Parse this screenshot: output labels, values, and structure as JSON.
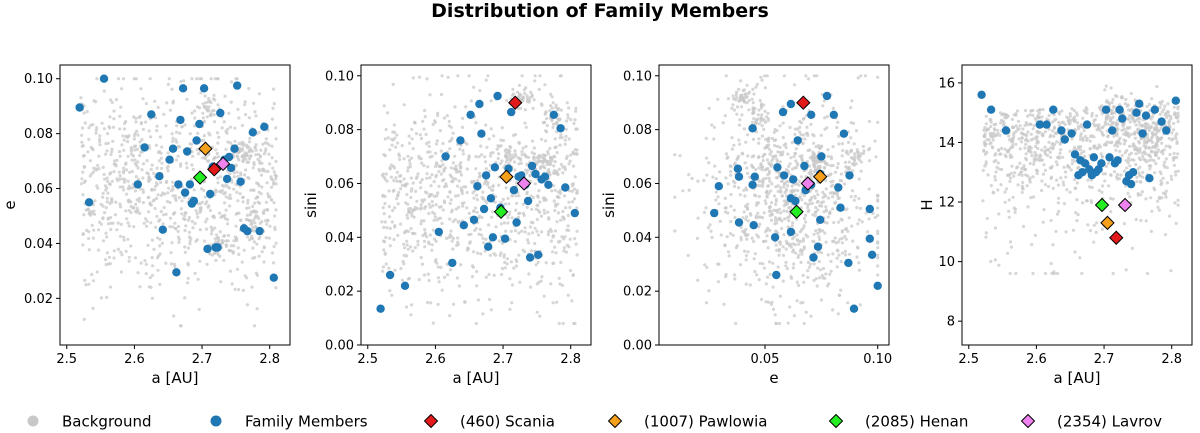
{
  "chart_data": {
    "title": "Distribution of Family Members",
    "type": "scatter",
    "legend": [
      {
        "label": "Background",
        "marker": "circle",
        "color": "#c8c8c8"
      },
      {
        "label": "Family Members",
        "marker": "circle",
        "color": "#1f77b4"
      },
      {
        "label": "(460) Scania",
        "marker": "diamond",
        "color": "#e31a1c"
      },
      {
        "label": "(1007) Pawlowia",
        "marker": "diamond",
        "color": "#f5a01a"
      },
      {
        "label": "(2085) Henan",
        "marker": "diamond",
        "color": "#22ee22"
      },
      {
        "label": "(2354) Lavrov",
        "marker": "diamond",
        "color": "#ee82ee"
      }
    ],
    "family_members": [
      {
        "a": 2.519,
        "e": 0.0895,
        "sini": 0.0135,
        "H": 15.6
      },
      {
        "a": 2.533,
        "e": 0.055,
        "sini": 0.026,
        "H": 15.1
      },
      {
        "a": 2.555,
        "e": 0.1,
        "sini": 0.022,
        "H": 14.4
      },
      {
        "a": 2.605,
        "e": 0.0615,
        "sini": 0.042,
        "H": 14.6
      },
      {
        "a": 2.615,
        "e": 0.075,
        "sini": 0.07,
        "H": 14.6
      },
      {
        "a": 2.625,
        "e": 0.087,
        "sini": 0.0305,
        "H": 15.1
      },
      {
        "a": 2.637,
        "e": 0.0645,
        "sini": 0.076,
        "H": 14.4
      },
      {
        "a": 2.642,
        "e": 0.045,
        "sini": 0.0445,
        "H": 14.1
      },
      {
        "a": 2.652,
        "e": 0.0705,
        "sini": 0.0855,
        "H": 14.3
      },
      {
        "a": 2.657,
        "e": 0.0745,
        "sini": 0.0465,
        "H": 13.6
      },
      {
        "a": 2.662,
        "e": 0.0295,
        "sini": 0.059,
        "H": 12.9
      },
      {
        "a": 2.665,
        "e": 0.0615,
        "sini": 0.0895,
        "H": 13.4
      },
      {
        "a": 2.668,
        "e": 0.085,
        "sini": 0.0785,
        "H": 13.0
      },
      {
        "a": 2.672,
        "e": 0.0965,
        "sini": 0.0505,
        "H": 13.3
      },
      {
        "a": 2.675,
        "e": 0.0585,
        "sini": 0.063,
        "H": 14.6
      },
      {
        "a": 2.678,
        "e": 0.0735,
        "sini": 0.0365,
        "H": 13.1
      },
      {
        "a": 2.682,
        "e": 0.0615,
        "sini": 0.0545,
        "H": 12.9
      },
      {
        "a": 2.685,
        "e": 0.0545,
        "sini": 0.04,
        "H": 13.5
      },
      {
        "a": 2.688,
        "e": 0.0555,
        "sini": 0.066,
        "H": 13.0
      },
      {
        "a": 2.692,
        "e": 0.0775,
        "sini": 0.0925,
        "H": 13.1
      },
      {
        "a": 2.696,
        "e": 0.0835,
        "sini": 0.051,
        "H": 13.3
      },
      {
        "a": 2.703,
        "e": 0.0965,
        "sini": 0.0395,
        "H": 15.1
      },
      {
        "a": 2.708,
        "e": 0.038,
        "sini": 0.0655,
        "H": 13.5
      },
      {
        "a": 2.712,
        "e": 0.058,
        "sini": 0.0865,
        "H": 14.4
      },
      {
        "a": 2.716,
        "e": 0.068,
        "sini": 0.0575,
        "H": 13.3
      },
      {
        "a": 2.72,
        "e": 0.0385,
        "sini": 0.0455,
        "H": 13.4
      },
      {
        "a": 2.723,
        "e": 0.0385,
        "sini": 0.0625,
        "H": 15.1
      },
      {
        "a": 2.727,
        "e": 0.0875,
        "sini": 0.063,
        "H": 14.8
      },
      {
        "a": 2.733,
        "e": 0.0705,
        "sini": 0.0595,
        "H": 12.7
      },
      {
        "a": 2.737,
        "e": 0.0635,
        "sini": 0.0535,
        "H": 12.9
      },
      {
        "a": 2.74,
        "e": 0.0715,
        "sini": 0.0325,
        "H": 12.6
      },
      {
        "a": 2.743,
        "e": 0.0675,
        "sini": 0.0665,
        "H": 13.0
      },
      {
        "a": 2.748,
        "e": 0.0745,
        "sini": 0.0635,
        "H": 15.0
      },
      {
        "a": 2.752,
        "e": 0.0975,
        "sini": 0.0335,
        "H": 15.3
      },
      {
        "a": 2.757,
        "e": 0.0625,
        "sini": 0.0615,
        "H": 14.3
      },
      {
        "a": 2.762,
        "e": 0.0455,
        "sini": 0.0625,
        "H": 14.9
      },
      {
        "a": 2.767,
        "e": 0.0445,
        "sini": 0.0595,
        "H": 12.8
      },
      {
        "a": 2.775,
        "e": 0.0805,
        "sini": 0.0855,
        "H": 15.1
      },
      {
        "a": 2.785,
        "e": 0.0445,
        "sini": 0.0805,
        "H": 14.7
      },
      {
        "a": 2.792,
        "e": 0.0825,
        "sini": 0.0585,
        "H": 14.4
      },
      {
        "a": 2.806,
        "e": 0.0275,
        "sini": 0.049,
        "H": 15.4
      }
    ],
    "representatives": [
      {
        "label": "(460) Scania",
        "a": 2.718,
        "e": 0.067,
        "sini": 0.09,
        "H": 10.8,
        "color": "#e31a1c"
      },
      {
        "label": "(1007) Pawlowia",
        "a": 2.705,
        "e": 0.0745,
        "sini": 0.0625,
        "H": 11.3,
        "color": "#f5a01a"
      },
      {
        "label": "(2085) Henan",
        "a": 2.697,
        "e": 0.064,
        "sini": 0.0495,
        "H": 11.9,
        "color": "#22ee22"
      },
      {
        "label": "(2354) Lavrov",
        "a": 2.731,
        "e": 0.069,
        "sini": 0.06,
        "H": 11.9,
        "color": "#ee82ee"
      }
    ],
    "background": {
      "count": 900,
      "color": "#c8c8c8"
    },
    "panels": [
      {
        "x": "a",
        "y": "e",
        "xlabel": "a [AU]",
        "ylabel": "e",
        "xlim": [
          2.49,
          2.83
        ],
        "ylim": [
          0.003,
          0.105
        ],
        "xticks": [
          2.5,
          2.6,
          2.7,
          2.8
        ],
        "xtick_labels": [
          "2.5",
          "2.6",
          "2.7",
          "2.8"
        ],
        "yticks": [
          0.02,
          0.04,
          0.06,
          0.08,
          0.1
        ],
        "ytick_labels": [
          "0.02",
          "0.04",
          "0.06",
          "0.08",
          "0.10"
        ]
      },
      {
        "x": "a",
        "y": "sini",
        "xlabel": "a [AU]",
        "ylabel": "sini",
        "xlim": [
          2.49,
          2.83
        ],
        "ylim": [
          0.0,
          0.104
        ],
        "xticks": [
          2.5,
          2.6,
          2.7,
          2.8
        ],
        "xtick_labels": [
          "2.5",
          "2.6",
          "2.7",
          "2.8"
        ],
        "yticks": [
          0.0,
          0.02,
          0.04,
          0.06,
          0.08,
          0.1
        ],
        "ytick_labels": [
          "0.00",
          "0.02",
          "0.04",
          "0.06",
          "0.08",
          "0.10"
        ]
      },
      {
        "x": "e",
        "y": "sini",
        "xlabel": "e",
        "ylabel": "sini",
        "xlim": [
          0.003,
          0.105
        ],
        "ylim": [
          0.0,
          0.104
        ],
        "xticks": [
          0.05,
          0.1
        ],
        "xtick_labels": [
          "0.05",
          "0.10"
        ],
        "yticks": [
          0.0,
          0.02,
          0.04,
          0.06,
          0.08,
          0.1
        ],
        "ytick_labels": [
          "0.00",
          "0.02",
          "0.04",
          "0.06",
          "0.08",
          "0.10"
        ]
      },
      {
        "x": "a",
        "y": "H",
        "xlabel": "a [AU]",
        "ylabel": "H",
        "xlim": [
          2.49,
          2.83
        ],
        "ylim": [
          7.2,
          16.6
        ],
        "xticks": [
          2.5,
          2.6,
          2.7,
          2.8
        ],
        "xtick_labels": [
          "2.5",
          "2.6",
          "2.7",
          "2.8"
        ],
        "yticks": [
          8,
          10,
          12,
          14,
          16
        ],
        "ytick_labels": [
          "8",
          "10",
          "12",
          "14",
          "16"
        ]
      }
    ]
  }
}
